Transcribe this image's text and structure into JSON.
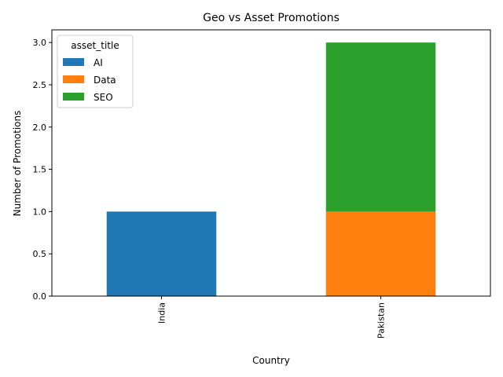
{
  "chart_data": {
    "type": "bar",
    "stacked": true,
    "title": "Geo vs Asset Promotions",
    "xlabel": "Country",
    "ylabel": "Number of Promotions",
    "categories": [
      "India",
      "Pakistan"
    ],
    "series": [
      {
        "name": "AI",
        "values": [
          1,
          0
        ],
        "color": "#1f77b4"
      },
      {
        "name": "Data",
        "values": [
          0,
          1
        ],
        "color": "#ff7f0e"
      },
      {
        "name": "SEO",
        "values": [
          0,
          2
        ],
        "color": "#2ca02c"
      }
    ],
    "ylim": [
      0,
      3.15
    ],
    "yticks": [
      0.0,
      0.5,
      1.0,
      1.5,
      2.0,
      2.5,
      3.0
    ],
    "ytick_labels": [
      "0.0",
      "0.5",
      "1.0",
      "1.5",
      "2.0",
      "2.5",
      "3.0"
    ],
    "legend": {
      "title": "asset_title",
      "position": "top-left"
    },
    "grid": false
  }
}
